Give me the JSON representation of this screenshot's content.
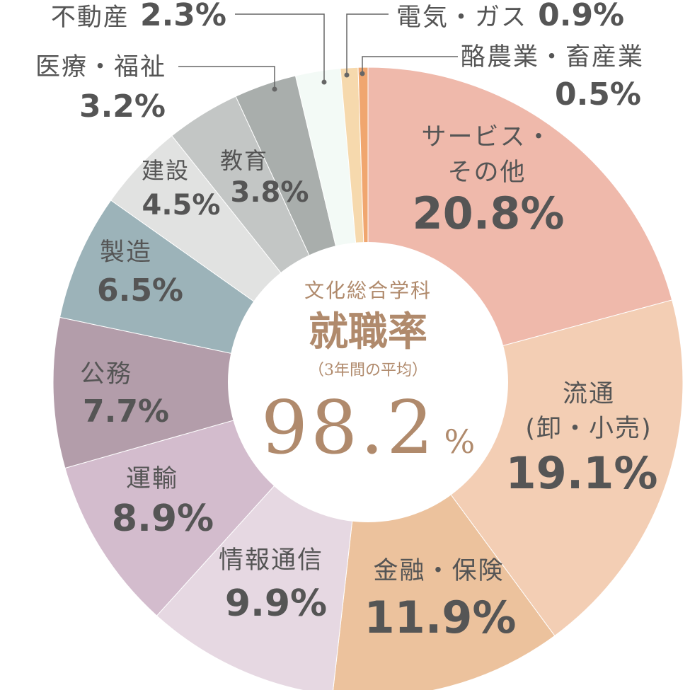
{
  "chart_data": {
    "type": "pie",
    "donut": true,
    "center": {
      "subtitle": "文化総合学科",
      "title": "就職率",
      "note": "（3年間の平均）",
      "value": "98.2",
      "unit": "%"
    },
    "slices": [
      {
        "category": "サービス・その他",
        "label_lines": [
          "サービス・",
          "その他"
        ],
        "value": 20.8,
        "value_label": "20.8%",
        "color": "#efb9ab"
      },
      {
        "category": "流通（卸・小売）",
        "label_lines": [
          "流通",
          "(卸・小売)"
        ],
        "value": 19.1,
        "value_label": "19.1%",
        "color": "#f3ceb4"
      },
      {
        "category": "金融・保険",
        "label_lines": [
          "金融・保険"
        ],
        "value": 11.9,
        "value_label": "11.9%",
        "color": "#ecc29d"
      },
      {
        "category": "情報通信",
        "label_lines": [
          "情報通信"
        ],
        "value": 9.9,
        "value_label": "9.9%",
        "color": "#e6d8e2"
      },
      {
        "category": "運輸",
        "label_lines": [
          "運輸"
        ],
        "value": 8.9,
        "value_label": "8.9%",
        "color": "#d3bccd"
      },
      {
        "category": "公務",
        "label_lines": [
          "公務"
        ],
        "value": 7.7,
        "value_label": "7.7%",
        "color": "#b39daa"
      },
      {
        "category": "製造",
        "label_lines": [
          "製造"
        ],
        "value": 6.5,
        "value_label": "6.5%",
        "color": "#9cb3b9"
      },
      {
        "category": "建設",
        "label_lines": [
          "建設"
        ],
        "value": 4.5,
        "value_label": "4.5%",
        "color": "#e1e2e1"
      },
      {
        "category": "教育",
        "label_lines": [
          "教育"
        ],
        "value": 3.8,
        "value_label": "3.8%",
        "color": "#c3c6c5"
      },
      {
        "category": "医療・福祉",
        "label_lines": [
          "医療・福祉"
        ],
        "value": 3.2,
        "value_label": "3.2%",
        "color": "#a9aeac"
      },
      {
        "category": "不動産",
        "label_lines": [
          "不動産"
        ],
        "value": 2.3,
        "value_label": "2.3%",
        "color": "#f3faf6"
      },
      {
        "category": "電気・ガス",
        "label_lines": [
          "電気・ガス"
        ],
        "value": 0.9,
        "value_label": "0.9%",
        "color": "#f6d9ad"
      },
      {
        "category": "酪農業・畜産業",
        "label_lines": [
          "酪農業・畜産業"
        ],
        "value": 0.5,
        "value_label": "0.5%",
        "color": "#f0a66f"
      }
    ]
  }
}
